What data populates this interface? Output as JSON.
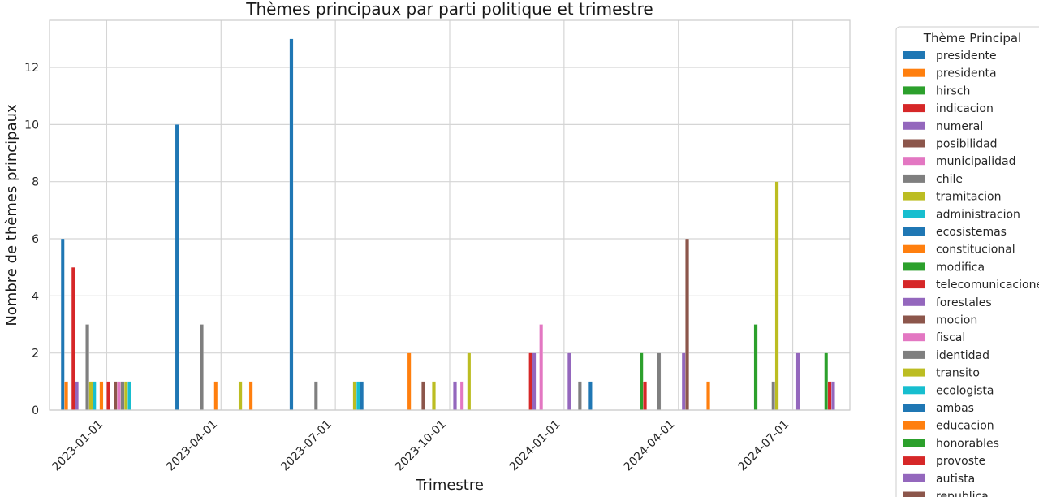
{
  "chart_data": {
    "type": "bar",
    "title": "Thèmes principaux par parti politique et trimestre",
    "xlabel": "Trimestre",
    "ylabel": "Nombre de thèmes principaux",
    "ylim": [
      0,
      13.65
    ],
    "yticks": [
      0,
      2,
      4,
      6,
      8,
      10,
      12
    ],
    "grid": true,
    "legend_position": "outside-right",
    "legend_title": "Thème Principal",
    "categories": [
      "2023-01-01",
      "2023-04-01",
      "2023-07-01",
      "2023-10-01",
      "2024-01-01",
      "2024-04-01",
      "2024-07-01"
    ],
    "series": [
      {
        "name": "presidente",
        "color": "#1f77b4",
        "values": [
          6,
          10,
          13,
          0,
          0,
          0,
          0
        ]
      },
      {
        "name": "presidenta",
        "color": "#ff7f0e",
        "values": [
          1,
          0,
          0,
          2,
          0,
          0,
          0
        ]
      },
      {
        "name": "hirsch",
        "color": "#2ca02c",
        "values": [
          0,
          0,
          0,
          0,
          0,
          2,
          3
        ]
      },
      {
        "name": "indicacion",
        "color": "#d62728",
        "values": [
          5,
          0,
          0,
          0,
          2,
          1,
          0
        ]
      },
      {
        "name": "numeral",
        "color": "#9467bd",
        "values": [
          1,
          0,
          0,
          0,
          2,
          0,
          0
        ]
      },
      {
        "name": "posibilidad",
        "color": "#8c564b",
        "values": [
          0,
          0,
          0,
          1,
          0,
          0,
          0
        ]
      },
      {
        "name": "municipalidad",
        "color": "#e377c2",
        "values": [
          0,
          0,
          0,
          0,
          3,
          0,
          0
        ]
      },
      {
        "name": "chile",
        "color": "#7f7f7f",
        "values": [
          3,
          3,
          1,
          0,
          0,
          2,
          1
        ]
      },
      {
        "name": "tramitacion",
        "color": "#bcbd22",
        "values": [
          1,
          0,
          0,
          1,
          0,
          0,
          8
        ]
      },
      {
        "name": "administracion",
        "color": "#17becf",
        "values": [
          1,
          0,
          0,
          0,
          0,
          0,
          0
        ]
      },
      {
        "name": "ecosistemas",
        "color": "#1f77b4",
        "values": [
          0,
          0,
          0,
          0,
          0,
          0,
          0
        ]
      },
      {
        "name": "constitucional",
        "color": "#ff7f0e",
        "values": [
          1,
          1,
          0,
          0,
          0,
          0,
          0
        ]
      },
      {
        "name": "modifica",
        "color": "#2ca02c",
        "values": [
          0,
          0,
          0,
          0,
          0,
          0,
          0
        ]
      },
      {
        "name": "telecomunicaciones",
        "color": "#d62728",
        "values": [
          1,
          0,
          0,
          0,
          0,
          0,
          0
        ]
      },
      {
        "name": "forestales",
        "color": "#9467bd",
        "values": [
          0,
          0,
          0,
          1,
          2,
          2,
          2
        ]
      },
      {
        "name": "mocion",
        "color": "#8c564b",
        "values": [
          1,
          0,
          0,
          0,
          0,
          6,
          0
        ]
      },
      {
        "name": "fiscal",
        "color": "#e377c2",
        "values": [
          1,
          0,
          0,
          1,
          0,
          0,
          0
        ]
      },
      {
        "name": "identidad",
        "color": "#7f7f7f",
        "values": [
          1,
          0,
          0,
          0,
          1,
          0,
          0
        ]
      },
      {
        "name": "transito",
        "color": "#bcbd22",
        "values": [
          1,
          1,
          1,
          2,
          0,
          0,
          0
        ]
      },
      {
        "name": "ecologista",
        "color": "#17becf",
        "values": [
          1,
          0,
          1,
          0,
          0,
          0,
          0
        ]
      },
      {
        "name": "ambas",
        "color": "#1f77b4",
        "values": [
          0,
          0,
          1,
          0,
          1,
          0,
          0
        ]
      },
      {
        "name": "educacion",
        "color": "#ff7f0e",
        "values": [
          0,
          1,
          0,
          0,
          0,
          1,
          0
        ]
      },
      {
        "name": "honorables",
        "color": "#2ca02c",
        "values": [
          0,
          0,
          0,
          0,
          0,
          0,
          2
        ]
      },
      {
        "name": "provoste",
        "color": "#d62728",
        "values": [
          0,
          0,
          0,
          0,
          0,
          0,
          1
        ]
      },
      {
        "name": "autista",
        "color": "#9467bd",
        "values": [
          0,
          0,
          0,
          0,
          0,
          0,
          1
        ]
      },
      {
        "name": "republica",
        "color": "#8c564b",
        "values": [
          0,
          0,
          0,
          0,
          0,
          0,
          0
        ]
      }
    ]
  }
}
